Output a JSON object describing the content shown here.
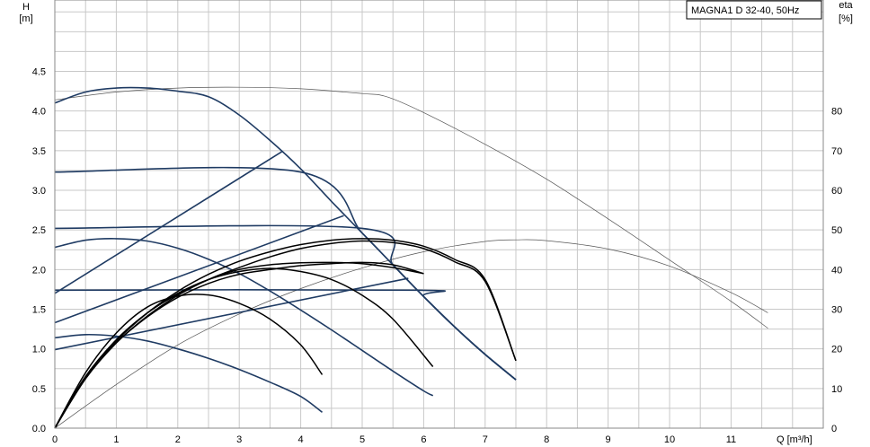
{
  "chart_data": {
    "type": "line",
    "title": "MAGNA1 D 32-40, 50Hz",
    "x_axis": {
      "label": "Q [m³/h]",
      "min": 0,
      "max": 12.5,
      "ticks": [
        0,
        1,
        2,
        3,
        4,
        5,
        6,
        7,
        8,
        9,
        10,
        11
      ]
    },
    "y_left": {
      "label_line1": "H",
      "label_line2": "[m]",
      "min": 0,
      "max": 5.4,
      "ticks": [
        0.0,
        0.5,
        1.0,
        1.5,
        2.0,
        2.5,
        3.0,
        3.5,
        4.0,
        4.5
      ],
      "tick_labels": [
        "0.0",
        "0.5",
        "1.0",
        "1.5",
        "2.0",
        "2.5",
        "3.0",
        "3.5",
        "4.0",
        "4.5"
      ]
    },
    "y_right": {
      "label_line1": "eta",
      "label_line2": "[%]",
      "min": 0,
      "max": 108,
      "ticks": [
        0,
        10,
        20,
        30,
        40,
        50,
        60,
        70,
        80
      ]
    },
    "grid": true,
    "colors": {
      "head_curves": "#1f3b63",
      "eff_curves": "#000000",
      "reference_curves": "#555555",
      "grid": "#c8c8c8"
    },
    "head_curves": [
      {
        "x": [
          0,
          0.5,
          1,
          1.5,
          2,
          2.5,
          3,
          3.5,
          4,
          4.5,
          5,
          5.5,
          6,
          6.5,
          7,
          7.5
        ],
        "y": [
          4.1,
          4.24,
          4.29,
          4.29,
          4.25,
          4.18,
          3.95,
          3.63,
          3.27,
          2.86,
          2.46,
          2.06,
          1.66,
          1.28,
          0.93,
          0.61
        ]
      },
      {
        "x": [
          0,
          4,
          5,
          5.5,
          6,
          6.5,
          7,
          7.5
        ],
        "y": [
          3.23,
          3.23,
          2.46,
          2.06,
          1.66,
          1.28,
          0.93,
          0.61
        ]
      },
      {
        "x": [
          0,
          5,
          5.5,
          6,
          6.5,
          7,
          7.5
        ],
        "y": [
          2.52,
          2.52,
          2.06,
          1.66,
          1.28,
          0.93,
          0.61
        ]
      },
      {
        "x": [
          0,
          5.9,
          6,
          6.5,
          7,
          7.5
        ],
        "y": [
          1.74,
          1.74,
          1.66,
          1.28,
          0.93,
          0.61
        ]
      },
      {
        "x": [
          0,
          0.5,
          1,
          1.5,
          2,
          2.5,
          3,
          3.5,
          4,
          4.5,
          5,
          5.5,
          6,
          6.15
        ],
        "y": [
          2.28,
          2.37,
          2.39,
          2.36,
          2.27,
          2.13,
          1.95,
          1.73,
          1.49,
          1.24,
          0.98,
          0.72,
          0.47,
          0.41
        ]
      },
      {
        "x": [
          0,
          0.5,
          1,
          1.5,
          2,
          2.5,
          3,
          3.5,
          4,
          4.35
        ],
        "y": [
          1.14,
          1.18,
          1.16,
          1.1,
          1.0,
          0.88,
          0.74,
          0.58,
          0.4,
          0.2
        ]
      }
    ],
    "system_lines": [
      {
        "x": [
          0,
          3.7
        ],
        "y": [
          1.7,
          3.49
        ]
      },
      {
        "x": [
          0,
          4.7
        ],
        "y": [
          1.33,
          2.68
        ]
      },
      {
        "x": [
          0,
          5.75
        ],
        "y": [
          0.99,
          1.89
        ]
      }
    ],
    "efficiency_curves": [
      {
        "x": [
          0,
          0.5,
          1,
          1.5,
          2,
          2.5,
          3,
          3.5,
          4,
          4.5,
          5,
          5.5,
          6,
          6.5,
          7,
          7.5
        ],
        "y": [
          0,
          13,
          22,
          29,
          34.5,
          38.8,
          42.1,
          44.5,
          46.3,
          47.4,
          47.8,
          47.4,
          45.9,
          42.6,
          37.5,
          17
        ]
      },
      {
        "x": [
          0,
          0.5,
          1,
          1.5,
          2,
          2.5,
          3,
          3.5,
          4,
          4.5,
          5,
          5.5,
          6,
          6.5,
          7,
          7.5
        ],
        "y": [
          0,
          12.5,
          21.5,
          28.2,
          33.5,
          37.5,
          40.5,
          43.2,
          45.3,
          46.6,
          47.2,
          46.8,
          45.3,
          42,
          37,
          17
        ]
      },
      {
        "x": [
          0,
          0.5,
          1,
          1.5,
          2,
          2.5,
          3,
          3.5,
          4,
          4.5,
          5,
          5.5,
          6
        ],
        "y": [
          0,
          13,
          22,
          29,
          33.8,
          37.5,
          40,
          41.2,
          41.7,
          41.8,
          41.5,
          40.5,
          39
        ]
      },
      {
        "x": [
          0,
          0.5,
          1,
          1.5,
          2,
          2.5,
          3,
          3.5,
          4,
          4.5,
          5,
          5.5,
          6
        ],
        "y": [
          0,
          12.5,
          21.5,
          28,
          33,
          36.5,
          38.8,
          40,
          41,
          41.5,
          41.8,
          41.2,
          39
        ]
      },
      {
        "x": [
          0,
          0.5,
          1,
          1.5,
          2,
          2.5,
          3,
          3.5,
          4,
          4.5,
          5,
          5.5,
          6.15
        ],
        "y": [
          0,
          13,
          22.3,
          29,
          34,
          37.5,
          39.5,
          40.3,
          39.5,
          37.5,
          33.5,
          27.5,
          15.5
        ]
      },
      {
        "x": [
          0,
          0.5,
          1,
          1.5,
          2,
          2.5,
          3,
          3.5,
          4,
          4.35
        ],
        "y": [
          0,
          14,
          24,
          30.5,
          33.3,
          33.6,
          31.5,
          27.5,
          21,
          13.5
        ]
      }
    ],
    "reference_curves": [
      {
        "x": [
          0,
          1,
          2,
          3,
          4,
          5,
          5.4,
          6,
          7,
          8,
          9,
          10,
          11,
          11.6
        ],
        "y": [
          4.14,
          4.24,
          4.29,
          4.3,
          4.28,
          4.22,
          4.18,
          3.98,
          3.58,
          3.14,
          2.64,
          2.12,
          1.6,
          1.26
        ]
      },
      {
        "x": [
          0,
          1,
          2,
          3,
          4,
          5,
          6,
          7,
          7.5,
          8,
          9,
          10,
          11,
          11.6
        ],
        "y": [
          0,
          11,
          21,
          28.8,
          35.2,
          40.4,
          44.5,
          47.1,
          47.5,
          47.3,
          45.2,
          40.9,
          34.2,
          29.1
        ]
      }
    ]
  }
}
